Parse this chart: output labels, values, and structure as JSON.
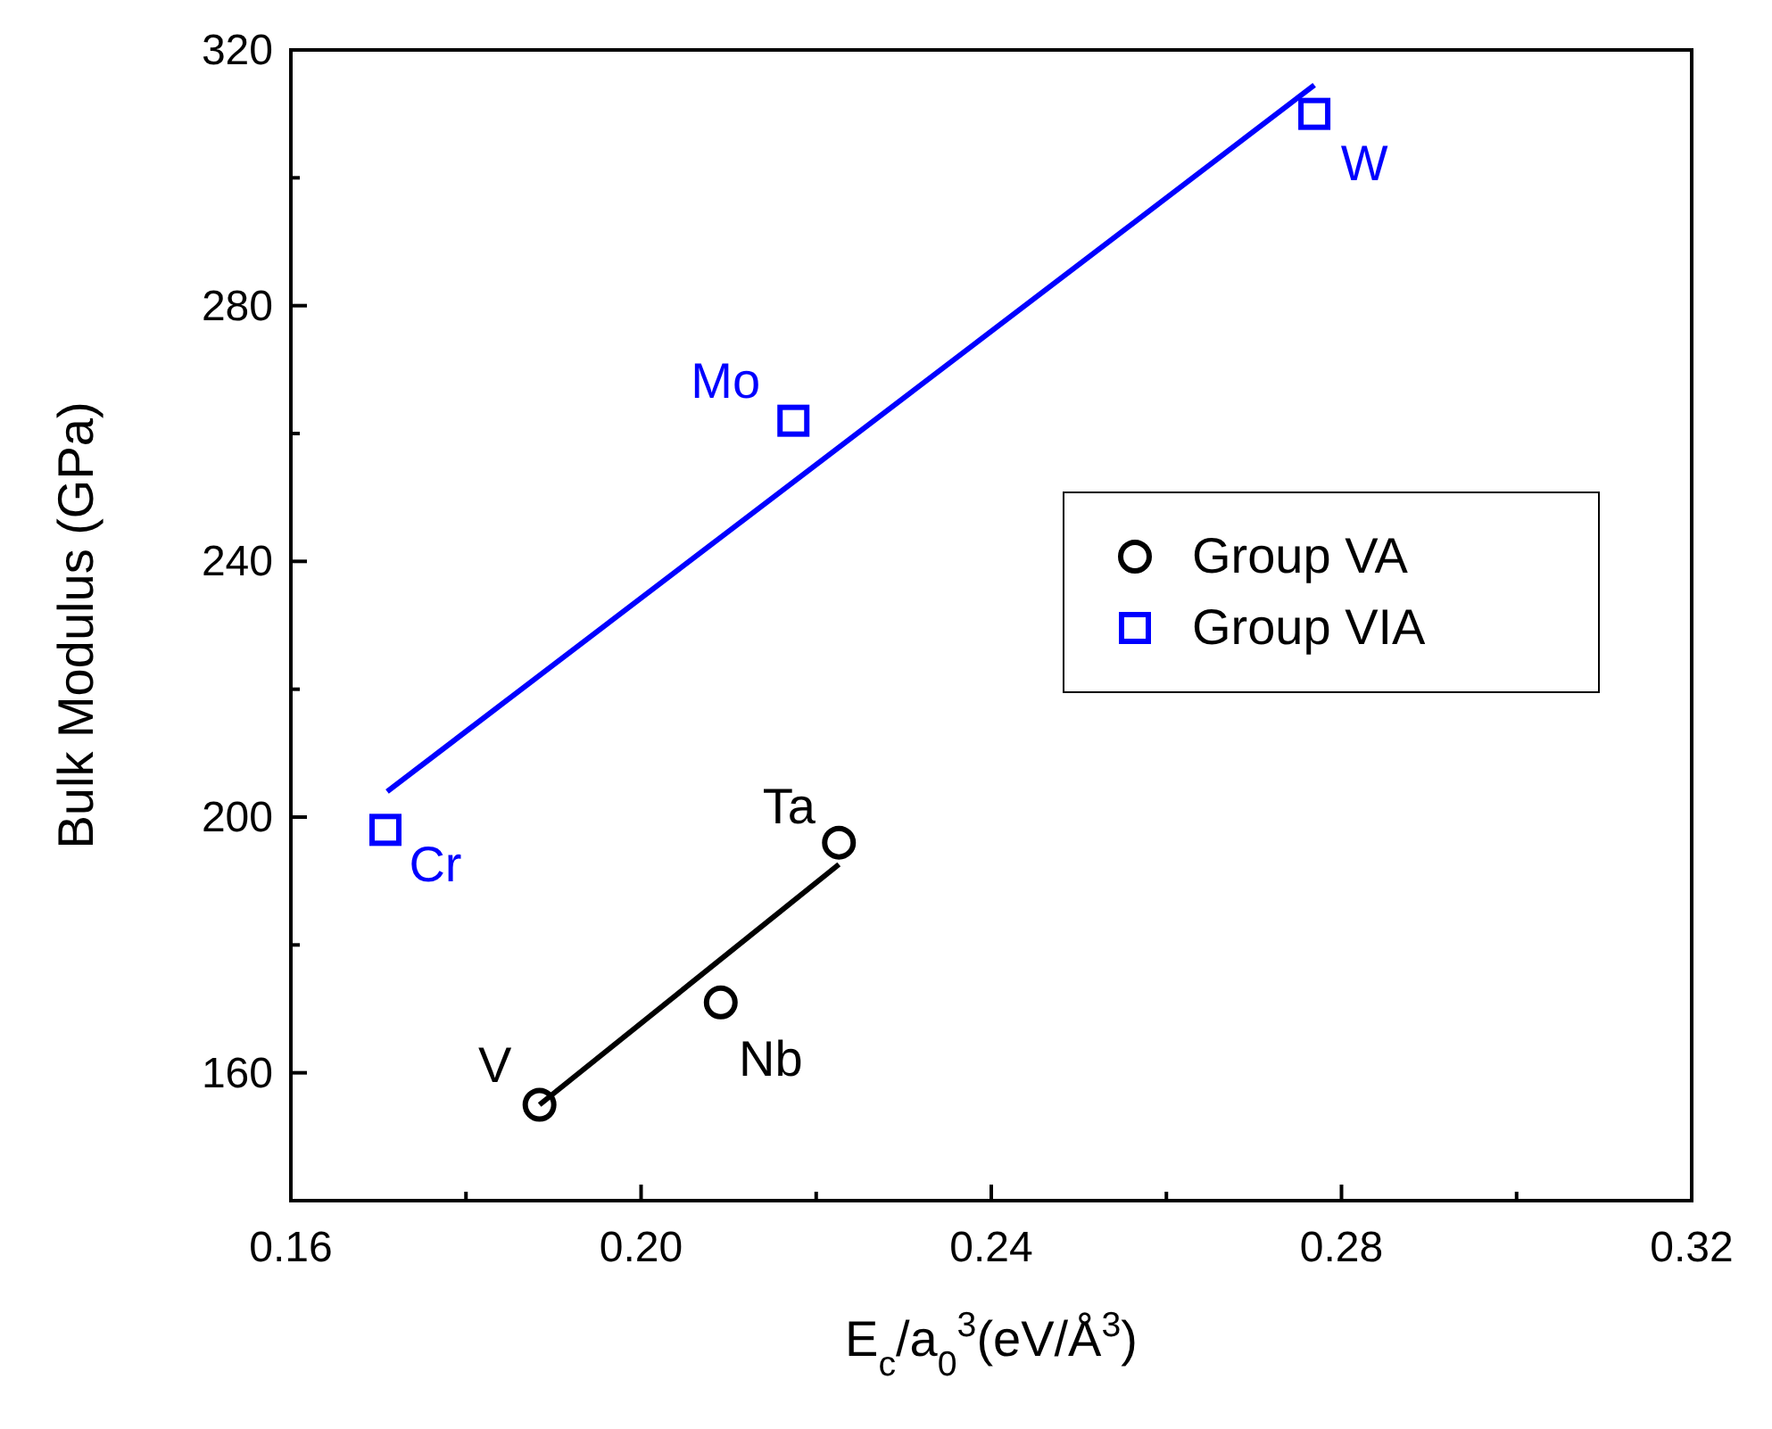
{
  "chart_data": {
    "type": "scatter",
    "xlabel": "E$_{c}$/a$_{0}$$^{3}$(eV/Å$^{3}$)",
    "ylabel": "Bulk Modulus (GPa)",
    "xlim": [
      0.16,
      0.32
    ],
    "xticks": [
      0.16,
      {
        "value": 0.18,
        "label": null
      },
      "0.20",
      {
        "value": 0.22,
        "label": null
      },
      0.24,
      {
        "value": 0.26,
        "label": null
      },
      0.28,
      {
        "value": 0.3,
        "label": null
      },
      0.32
    ],
    "ylim": [
      140,
      320
    ],
    "yticks": [
      {
        "value": 140,
        "label": null
      },
      160,
      {
        "value": 180,
        "label": null
      },
      200,
      {
        "value": 220,
        "label": null
      },
      240,
      {
        "value": 260,
        "label": null
      },
      280,
      {
        "value": 300,
        "label": null
      },
      320
    ],
    "series": [
      {
        "name": "Group VA",
        "marker": "circle",
        "color": "#000000",
        "x": [
          0.1884,
          0.2091,
          0.2226
        ],
        "values": [
          155,
          171,
          196
        ]
      },
      {
        "name": "Group VIA",
        "marker": "square",
        "color": "#0000ff",
        "x": [
          0.1708,
          0.2174,
          0.2769
        ],
        "values": [
          198,
          262,
          310
        ]
      },
      {
        "type": "line",
        "color": "#000000",
        "x": [
          0.1884,
          0.2226
        ],
        "values": [
          155,
          192.6
        ]
      },
      {
        "type": "line",
        "color": "#0000ff",
        "x": [
          0.171,
          0.2769
        ],
        "values": [
          204,
          314.5
        ]
      }
    ],
    "annotations": [
      {
        "text": "V",
        "x": 0.1884,
        "y": 155
      },
      {
        "text": "Nb",
        "x": 0.2091,
        "y": 171
      },
      {
        "text": "Ta",
        "x": 0.2226,
        "y": 196
      },
      {
        "text": "Cr",
        "x": 0.1708,
        "y": 198
      },
      {
        "text": "Mo",
        "x": 0.2174,
        "y": 262
      },
      {
        "text": "W",
        "x": 0.2769,
        "y": 310
      }
    ],
    "legend": "right",
    "grid": false
  }
}
